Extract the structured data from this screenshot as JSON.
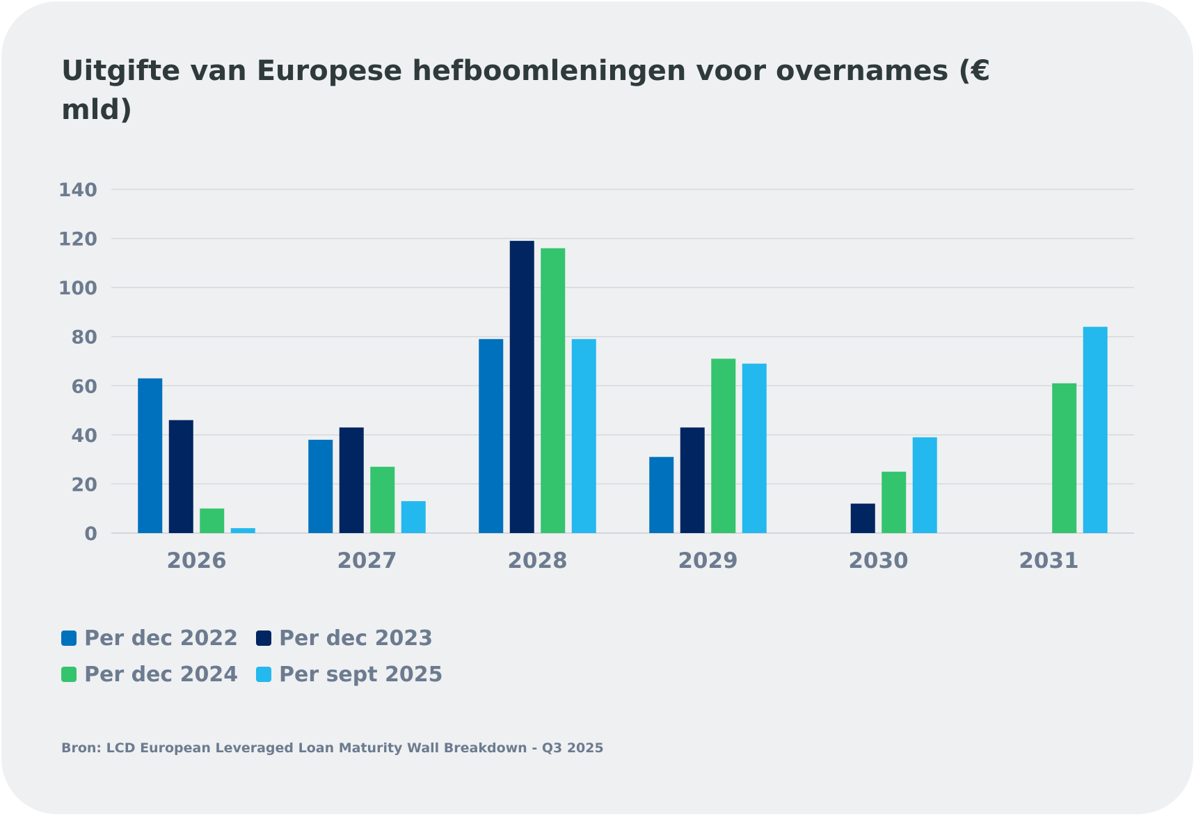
{
  "title": "Uitgifte van Europese hefboomleningen voor overnames (€ mld)",
  "source": "Bron: LCD European Leveraged Loan Maturity Wall Breakdown - Q3 2025",
  "legend": [
    {
      "label": "Per dec 2022",
      "color": "#0071bc"
    },
    {
      "label": "Per dec 2023",
      "color": "#002561"
    },
    {
      "label": "Per dec 2024",
      "color": "#34c46d"
    },
    {
      "label": "Per sept 2025",
      "color": "#23b8ee"
    }
  ],
  "chart_data": {
    "type": "bar",
    "title": "Uitgifte van Europese hefboomleningen voor overnames (€ mld)",
    "xlabel": "",
    "ylabel": "",
    "categories": [
      "2026",
      "2027",
      "2028",
      "2029",
      "2030",
      "2031"
    ],
    "ylim": [
      0,
      140
    ],
    "yticks": [
      "0",
      "20",
      "40",
      "60",
      "80",
      "100",
      "120",
      "140"
    ],
    "grid": true,
    "legend_position": "bottom-left",
    "series": [
      {
        "name": "Per dec 2022",
        "color": "#0071bc",
        "values": [
          63,
          38,
          79,
          31,
          null,
          null
        ]
      },
      {
        "name": "Per dec 2023",
        "color": "#002561",
        "values": [
          46,
          43,
          119,
          43,
          12,
          null
        ]
      },
      {
        "name": "Per dec 2024",
        "color": "#34c46d",
        "values": [
          10,
          27,
          116,
          71,
          25,
          61
        ]
      },
      {
        "name": "Per sept 2025",
        "color": "#23b8ee",
        "values": [
          2,
          13,
          79,
          69,
          39,
          84
        ]
      }
    ]
  }
}
